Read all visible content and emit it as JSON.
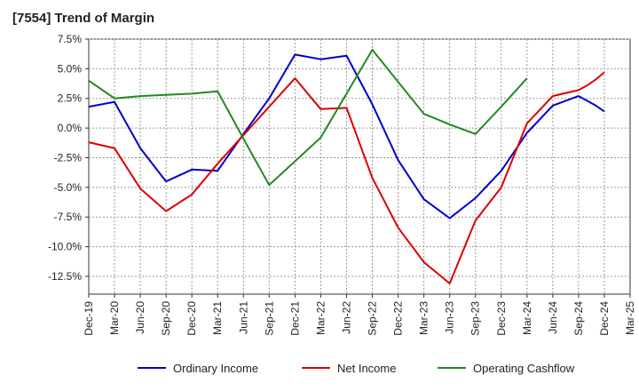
{
  "title": "[7554]  Trend of Margin",
  "chart_data": {
    "type": "line",
    "title": "[7554]  Trend of Margin",
    "xlabel": "",
    "ylabel": "",
    "x": [
      "Dec-19",
      "Mar-20",
      "Jun-20",
      "Sep-20",
      "Dec-20",
      "Mar-21",
      "Jun-21",
      "Sep-21",
      "Dec-21",
      "Mar-22",
      "Jun-22",
      "Sep-22",
      "Dec-22",
      "Mar-23",
      "Jun-23",
      "Sep-23",
      "Dec-23",
      "Mar-24",
      "Jun-24",
      "Sep-24",
      "Dec-24",
      "Mar-25"
    ],
    "ylim": [
      -14.0,
      7.5
    ],
    "yticks": [
      7.5,
      5.0,
      2.5,
      0.0,
      -2.5,
      -5.0,
      -7.5,
      -10.0,
      -12.5
    ],
    "ytick_labels": [
      "7.5%",
      "5.0%",
      "2.5%",
      "0.0%",
      "-2.5%",
      "-5.0%",
      "-7.5%",
      "-10.0%",
      "-12.5%"
    ],
    "grid": true,
    "legend_position": "bottom",
    "series": [
      {
        "name": "Ordinary Income",
        "color": "#0000cc",
        "points": [
          [
            "Dec-19",
            1.8
          ],
          [
            "Mar-20",
            2.2
          ],
          [
            "Jun-20",
            -1.7
          ],
          [
            "Sep-20",
            -4.5
          ],
          [
            "Dec-20",
            -3.5
          ],
          [
            "Mar-21",
            -3.6
          ],
          [
            "Jun-21",
            -0.5
          ],
          [
            "Sep-21",
            2.5
          ],
          [
            "Dec-21",
            6.2
          ],
          [
            "Mar-22",
            5.8
          ],
          [
            "Jun-22",
            6.1
          ],
          [
            "Sep-22",
            2.0
          ],
          [
            "Dec-22",
            -2.7
          ],
          [
            "Mar-23",
            -6.0
          ],
          [
            "Jun-23",
            -7.6
          ],
          [
            "Sep-23",
            -5.9
          ],
          [
            "Dec-23",
            -3.6
          ],
          [
            "Mar-24",
            -0.4
          ],
          [
            "Jun-24",
            1.9
          ],
          [
            "Sep-24",
            2.7
          ],
          [
            "Oct-24",
            2.3
          ],
          [
            "Nov-24",
            1.9
          ],
          [
            "Dec-24",
            1.4
          ]
        ]
      },
      {
        "name": "Net Income",
        "color": "#dd0000",
        "points": [
          [
            "Dec-19",
            -1.2
          ],
          [
            "Mar-20",
            -1.7
          ],
          [
            "Jun-20",
            -5.1
          ],
          [
            "Sep-20",
            -7.0
          ],
          [
            "Dec-20",
            -5.6
          ],
          [
            "Mar-21",
            -3.0
          ],
          [
            "Jun-21",
            -0.6
          ],
          [
            "Sep-21",
            1.8
          ],
          [
            "Dec-21",
            4.2
          ],
          [
            "Mar-22",
            1.6
          ],
          [
            "Jun-22",
            1.7
          ],
          [
            "Sep-22",
            -4.2
          ],
          [
            "Dec-22",
            -8.4
          ],
          [
            "Mar-23",
            -11.3
          ],
          [
            "Jun-23",
            -13.1
          ],
          [
            "Sep-23",
            -7.8
          ],
          [
            "Dec-23",
            -5.0
          ],
          [
            "Mar-24",
            0.4
          ],
          [
            "Jun-24",
            2.7
          ],
          [
            "Sep-24",
            3.2
          ],
          [
            "Oct-24",
            3.6
          ],
          [
            "Nov-24",
            4.1
          ],
          [
            "Dec-24",
            4.7
          ]
        ]
      },
      {
        "name": "Operating Cashflow",
        "color": "#228822",
        "points": [
          [
            "Dec-19",
            4.0
          ],
          [
            "Mar-20",
            2.5
          ],
          [
            "Jun-20",
            2.7
          ],
          [
            "Sep-20",
            2.8
          ],
          [
            "Dec-20",
            2.9
          ],
          [
            "Mar-21",
            3.1
          ],
          [
            "Jun-21",
            -0.9
          ],
          [
            "Sep-21",
            -4.8
          ],
          [
            "Dec-21",
            -2.8
          ],
          [
            "Mar-22",
            -0.8
          ],
          [
            "Jun-22",
            2.9
          ],
          [
            "Sep-22",
            6.6
          ],
          [
            "Dec-22",
            3.9
          ],
          [
            "Mar-23",
            1.2
          ],
          [
            "Jun-23",
            0.3
          ],
          [
            "Sep-23",
            -0.5
          ],
          [
            "Dec-23",
            1.8
          ],
          [
            "Mar-24",
            4.2
          ]
        ]
      }
    ]
  }
}
